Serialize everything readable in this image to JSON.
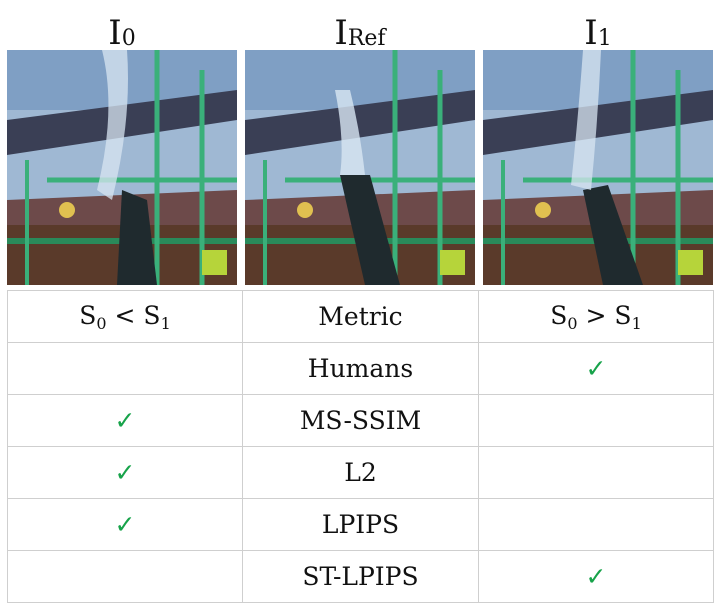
{
  "images": [
    {
      "label_main": "I",
      "label_sub": "0"
    },
    {
      "label_main": "I",
      "label_sub": "Ref"
    },
    {
      "label_main": "I",
      "label_sub": "1"
    }
  ],
  "table": {
    "header": {
      "left": {
        "s": "S",
        "sub0": "0",
        "op": " < ",
        "s2": "S",
        "sub1": "1"
      },
      "center": "Metric",
      "right": {
        "s": "S",
        "sub0": "0",
        "op": " > ",
        "s2": "S",
        "sub1": "1"
      }
    },
    "check_symbol": "✓",
    "check_color": "#17a34a",
    "rows": [
      {
        "metric": "Humans",
        "left": "",
        "right": "✓"
      },
      {
        "metric": "MS-SSIM",
        "left": "✓",
        "right": ""
      },
      {
        "metric": "L2",
        "left": "✓",
        "right": ""
      },
      {
        "metric": "LPIPS",
        "left": "✓",
        "right": ""
      },
      {
        "metric": "ST-LPIPS",
        "left": "",
        "right": "✓"
      }
    ]
  }
}
